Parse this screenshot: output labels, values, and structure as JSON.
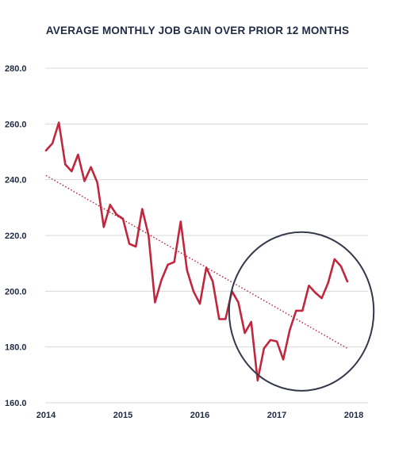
{
  "chart_data": {
    "type": "line",
    "title": "AVERAGE MONTHLY JOB GAIN OVER PRIOR 12 MONTHS",
    "xlabel": "",
    "ylabel": "",
    "ylim": [
      160,
      280
    ],
    "xlim": [
      2014,
      2018
    ],
    "y_ticks": [
      "280.0",
      "260.0",
      "240.0",
      "220.0",
      "200.0",
      "180.0",
      "160.0"
    ],
    "y_tick_values": [
      280,
      260,
      240,
      220,
      200,
      180,
      160
    ],
    "x_ticks": [
      "2014",
      "2015",
      "2016",
      "2017",
      "2018"
    ],
    "x_tick_values": [
      2014,
      2015,
      2016,
      2017,
      2018
    ],
    "grid": "horizontal",
    "colors": {
      "line": "#c0273e",
      "trend": "#c0273e",
      "grid": "#d9d9d9",
      "ellipse": "#33394a",
      "text": "#1f2a44"
    },
    "series": [
      {
        "x": [
          2014.0,
          2014.083,
          2014.167,
          2014.25,
          2014.333,
          2014.417,
          2014.5,
          2014.583,
          2014.667,
          2014.75,
          2014.833,
          2014.917,
          2015.0,
          2015.083,
          2015.167,
          2015.25,
          2015.333,
          2015.417,
          2015.5,
          2015.583,
          2015.667,
          2015.75,
          2015.833,
          2015.917,
          2016.0,
          2016.083,
          2016.167,
          2016.25,
          2016.333,
          2016.417,
          2016.5,
          2016.583,
          2016.667,
          2016.75,
          2016.833,
          2016.917,
          2017.0,
          2017.083,
          2017.167,
          2017.25,
          2017.333,
          2017.417,
          2017.5,
          2017.583,
          2017.667,
          2017.75,
          2017.833,
          2017.917
        ],
        "values": [
          250.5,
          253.0,
          260.5,
          245.5,
          243.0,
          249.0,
          239.5,
          244.5,
          239.0,
          223.0,
          231.0,
          227.5,
          226.0,
          217.0,
          216.0,
          229.5,
          220.0,
          196.0,
          204.0,
          209.5,
          210.5,
          225.0,
          207.5,
          200.0,
          195.5,
          208.5,
          203.5,
          190.0,
          190.0,
          200.0,
          196.0,
          185.0,
          189.0,
          168.0,
          179.5,
          182.5,
          182.0,
          175.5,
          186.0,
          193.0,
          193.0,
          202.0,
          199.5,
          197.5,
          203.0,
          211.5,
          209.0,
          203.5
        ]
      }
    ],
    "trendline": {
      "x": [
        2014.0,
        2017.917
      ],
      "values": [
        241.5,
        179.5
      ],
      "style": "dotted"
    },
    "annotation": {
      "shape": "ellipse",
      "x_range": [
        2016.38,
        2018.26
      ],
      "y_range": [
        164.3,
        221.2
      ]
    }
  }
}
